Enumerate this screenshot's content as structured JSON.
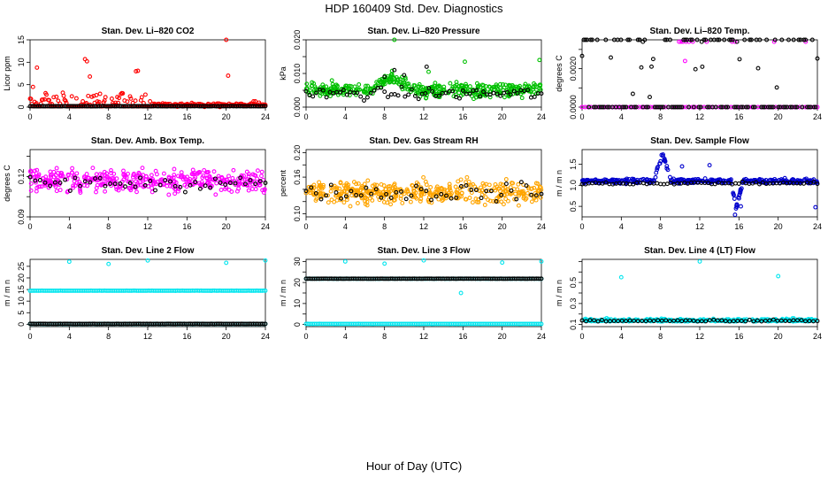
{
  "figure": {
    "title": "HDP  160409  Std. Dev. Diagnostics",
    "xlabel": "Hour of Day (UTC)"
  },
  "chart_data": [
    {
      "type": "scatter",
      "title": "Stan. Dev. Li–820 CO2",
      "ylabel": "Licor ppm",
      "xlim": [
        0,
        24
      ],
      "ylim": [
        0,
        15
      ],
      "xticks": [
        0,
        4,
        8,
        12,
        16,
        20,
        24
      ],
      "yticks": [
        0,
        5,
        10,
        15
      ],
      "series": [
        {
          "name": "data",
          "color": "#ff0000",
          "pattern": "co2",
          "outliers": [
            [
              0.3,
              4.5
            ],
            [
              0.7,
              8.8
            ],
            [
              5.6,
              10.7
            ],
            [
              5.8,
              10.2
            ],
            [
              10.8,
              8.0
            ],
            [
              11.0,
              8.1
            ],
            [
              20.0,
              15.0
            ],
            [
              20.2,
              7.0
            ],
            [
              6.1,
              6.8
            ]
          ]
        },
        {
          "name": "hourly",
          "color": "#000000",
          "pattern": "flat",
          "y": 0.2
        }
      ]
    },
    {
      "type": "scatter",
      "title": "Stan. Dev. Li–820 Pressure",
      "ylabel": "kPa",
      "xlim": [
        0,
        24
      ],
      "ylim": [
        0,
        0.02
      ],
      "xticks": [
        0,
        4,
        8,
        12,
        16,
        20,
        24
      ],
      "yticks": [
        0,
        0.005,
        0.01,
        0.015,
        0.02
      ],
      "ytick_labels": [
        "0.000",
        "",
        "0.010",
        "",
        "0.020"
      ],
      "series": [
        {
          "name": "data",
          "color": "#00c000",
          "pattern": "pressure",
          "outliers": [
            [
              9.0,
              0.02
            ],
            [
              16.2,
              0.0135
            ],
            [
              23.8,
              0.014
            ],
            [
              12.5,
              0.0105
            ]
          ]
        },
        {
          "name": "hourly",
          "color": "#000000",
          "pattern": "pressure-black",
          "outliers": [
            [
              12.3,
              0.012
            ],
            [
              8.0,
              0.009
            ],
            [
              9.0,
              0.011
            ],
            [
              10.0,
              0.0095
            ]
          ]
        }
      ]
    },
    {
      "type": "scatter",
      "title": "Stan. Dev. Li–820 Temp.",
      "ylabel": "degrees C",
      "xlim": [
        0,
        24
      ],
      "ylim": [
        0,
        0.0035
      ],
      "xticks": [
        0,
        4,
        8,
        12,
        16,
        20,
        24
      ],
      "yticks": [
        0,
        0.001,
        0.002,
        0.003
      ],
      "ytick_labels": [
        "0.0000",
        "",
        "0.0020",
        ""
      ],
      "series": [
        {
          "name": "data",
          "color": "#ff00ff",
          "pattern": "temp",
          "outliers": [
            [
              9.9,
              0.0034
            ],
            [
              10.1,
              0.0034
            ],
            [
              10.3,
              0.0034
            ],
            [
              10.6,
              0.0034
            ],
            [
              10.9,
              0.0034
            ],
            [
              11.3,
              0.0034
            ],
            [
              12.7,
              0.0034
            ],
            [
              15.3,
              0.0034
            ],
            [
              15.6,
              0.0034
            ],
            [
              19.6,
              0.0034
            ],
            [
              22.8,
              0.0034
            ],
            [
              10.5,
              0.0024
            ]
          ]
        },
        {
          "name": "hourly",
          "color": "#000000",
          "pattern": "flat",
          "y": 0.0,
          "outliers": [
            [
              6.2,
              0.0034
            ],
            [
              12.2,
              0.0034
            ],
            [
              15.8,
              0.0034
            ]
          ]
        }
      ]
    },
    {
      "type": "scatter",
      "title": "Stan. Dev. Amb. Box Temp.",
      "ylabel": "degrees C",
      "xlim": [
        0,
        24
      ],
      "ylim": [
        0.09,
        0.14
      ],
      "xticks": [
        0,
        4,
        8,
        12,
        16,
        20,
        24
      ],
      "yticks": [
        0.09,
        0.105,
        0.12,
        0.135
      ],
      "ytick_labels": [
        "0.09",
        "",
        "0.12",
        ""
      ],
      "series": [
        {
          "name": "data",
          "color": "#ff00ff",
          "pattern": "ambtemp"
        },
        {
          "name": "hourly",
          "color": "#000000",
          "pattern": "ambtemp-black"
        }
      ]
    },
    {
      "type": "scatter",
      "title": "Stan. Dev. Gas Stream RH",
      "ylabel": "percent",
      "xlim": [
        0,
        24
      ],
      "ylim": [
        0.095,
        0.205
      ],
      "xticks": [
        0,
        4,
        8,
        12,
        16,
        20,
        24
      ],
      "yticks": [
        0.1,
        0.12,
        0.14,
        0.16,
        0.18,
        0.2
      ],
      "ytick_labels": [
        "0.10",
        "",
        "",
        "0.16",
        "",
        "0.20"
      ],
      "series": [
        {
          "name": "data",
          "color": "#ffa500",
          "pattern": "rh"
        },
        {
          "name": "hourly",
          "color": "#000000",
          "pattern": "rh-black"
        }
      ]
    },
    {
      "type": "scatter",
      "title": "Stan. Dev. Sample Flow",
      "ylabel": "m / m n",
      "xlim": [
        0,
        24
      ],
      "ylim": [
        0.25,
        1.85
      ],
      "xticks": [
        0,
        4,
        8,
        12,
        16,
        20,
        24
      ],
      "yticks": [
        0.5,
        1.0,
        1.5
      ],
      "ytick_labels": [
        "0.5",
        "1.0",
        "1.5"
      ],
      "series": [
        {
          "name": "data",
          "color": "#0000cd",
          "pattern": "sampleflow",
          "outliers": [
            [
              15.6,
              0.3
            ],
            [
              15.7,
              0.45
            ],
            [
              16.2,
              0.5
            ],
            [
              23.8,
              0.48
            ],
            [
              13.0,
              1.48
            ],
            [
              10.2,
              1.45
            ]
          ]
        },
        {
          "name": "hourly",
          "color": "#000000",
          "pattern": "sampleflow-black"
        }
      ]
    },
    {
      "type": "scatter",
      "title": "Stan. Dev. Line 2 Flow",
      "ylabel": "m / m n",
      "xlim": [
        0,
        24
      ],
      "ylim": [
        -1,
        28
      ],
      "xticks": [
        0,
        4,
        8,
        12,
        16,
        20,
        24
      ],
      "yticks": [
        0,
        5,
        10,
        15,
        20,
        25
      ],
      "ytick_labels": [
        "0",
        "5",
        "10",
        "15",
        "20",
        "25"
      ],
      "series": [
        {
          "name": "data-high",
          "color": "#00e5ee",
          "pattern": "flat",
          "y": 14.5
        },
        {
          "name": "data-low",
          "color": "#00e5ee",
          "pattern": "flat",
          "y": 0.2
        },
        {
          "name": "hourly",
          "color": "#000000",
          "pattern": "flat",
          "y": 0.2
        },
        {
          "name": "spikes",
          "color": "#00e5ee",
          "pattern": "none",
          "outliers": [
            [
              4.0,
              27.0
            ],
            [
              8.0,
              26.0
            ],
            [
              12.0,
              27.5
            ],
            [
              20.0,
              26.5
            ],
            [
              24.0,
              27.5
            ]
          ]
        }
      ]
    },
    {
      "type": "scatter",
      "title": "Stan. Dev. Line 3 Flow",
      "ylabel": "m / m n",
      "xlim": [
        0,
        24
      ],
      "ylim": [
        -1,
        31
      ],
      "xticks": [
        0,
        4,
        8,
        12,
        16,
        20,
        24
      ],
      "yticks": [
        0,
        5,
        10,
        15,
        20,
        25,
        30
      ],
      "ytick_labels": [
        "0",
        "",
        "10",
        "",
        "20",
        "",
        "30"
      ],
      "series": [
        {
          "name": "data-high",
          "color": "#00e5ee",
          "pattern": "flat",
          "y": 21.8
        },
        {
          "name": "data-low",
          "color": "#00e5ee",
          "pattern": "flat",
          "y": 0.3
        },
        {
          "name": "hourly",
          "color": "#000000",
          "pattern": "flat",
          "y": 21.8
        },
        {
          "name": "spikes",
          "color": "#00e5ee",
          "pattern": "none",
          "outliers": [
            [
              4.0,
              30.0
            ],
            [
              8.0,
              29.0
            ],
            [
              12.0,
              30.5
            ],
            [
              15.8,
              15.0
            ],
            [
              20.0,
              29.5
            ],
            [
              24.0,
              30.0
            ]
          ]
        }
      ]
    },
    {
      "type": "scatter",
      "title": "Stan. Dev. Line 4 (LT) Flow",
      "ylabel": "m / m n",
      "xlim": [
        0,
        24
      ],
      "ylim": [
        0.08,
        0.72
      ],
      "xticks": [
        0,
        4,
        8,
        12,
        16,
        20,
        24
      ],
      "yticks": [
        0.1,
        0.2,
        0.3,
        0.4,
        0.5,
        0.6,
        0.7
      ],
      "ytick_labels": [
        "0.1",
        "",
        "0.3",
        "",
        "0.5",
        "",
        ""
      ],
      "series": [
        {
          "name": "data",
          "color": "#00e5ee",
          "pattern": "line4",
          "outliers": [
            [
              4.0,
              0.55
            ],
            [
              12.0,
              0.7
            ],
            [
              20.0,
              0.56
            ]
          ]
        },
        {
          "name": "hourly",
          "color": "#000000",
          "pattern": "line4-black"
        }
      ]
    }
  ]
}
